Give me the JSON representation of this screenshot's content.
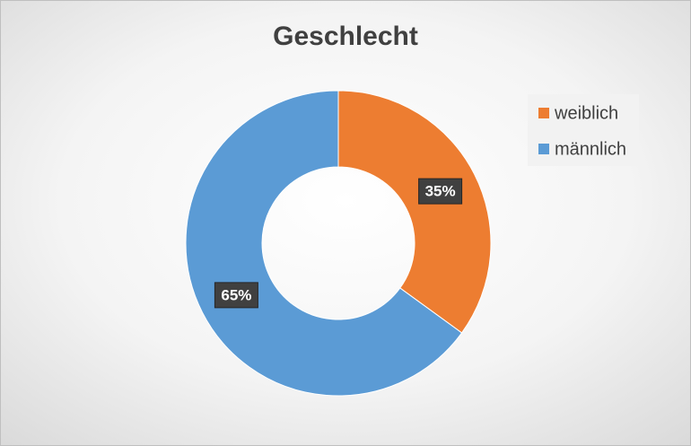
{
  "chart_data": {
    "type": "donut",
    "title": "Geschlecht",
    "categories": [
      "weiblich",
      "männlich"
    ],
    "values": [
      35,
      65
    ],
    "value_labels": [
      "35%",
      "65%"
    ],
    "colors": [
      "#ED7D31",
      "#5B9BD5"
    ],
    "legend": "top-right"
  }
}
